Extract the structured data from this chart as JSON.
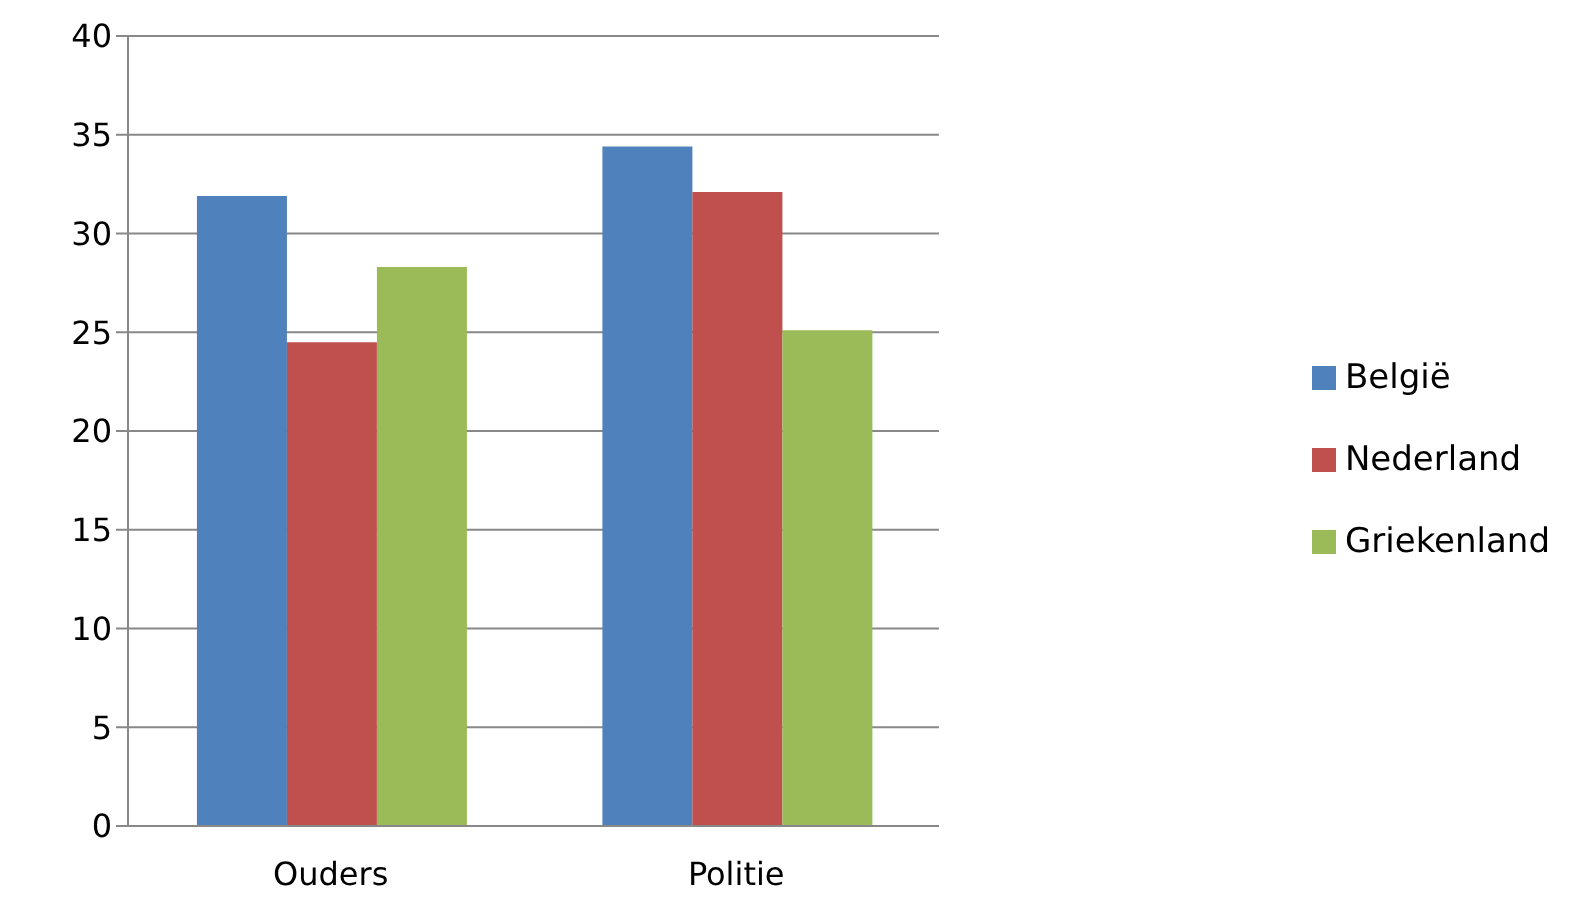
{
  "chart_data": {
    "type": "bar",
    "categories": [
      "Ouders",
      "Politie"
    ],
    "series": [
      {
        "name": "België",
        "color": "#4f81bd",
        "values": [
          31.9,
          34.4
        ]
      },
      {
        "name": "Nederland",
        "color": "#c0504d",
        "values": [
          24.5,
          32.1
        ]
      },
      {
        "name": "Griekenland",
        "color": "#9bbb59",
        "values": [
          28.3,
          25.1
        ]
      }
    ],
    "ylim": [
      0,
      40
    ],
    "yticks": [
      0,
      5,
      10,
      15,
      20,
      25,
      30,
      35,
      40
    ],
    "grid": "y",
    "legend": "right"
  }
}
